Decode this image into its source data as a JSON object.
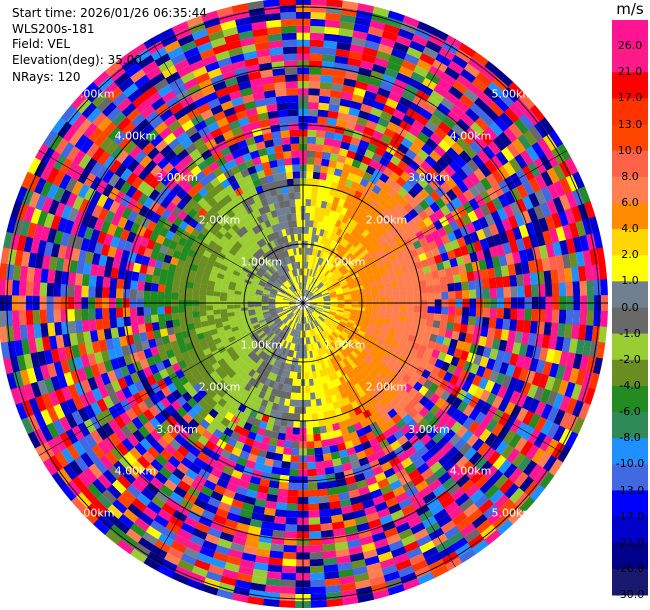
{
  "info": {
    "start_time": "Start time: 2026/01/26 06:35:44",
    "instrument": "WLS200s-181",
    "field": "Field: VEL",
    "elevation": "Elevation(deg): 35.00",
    "nrays": "NRays: 120"
  },
  "colorbar": {
    "unit": "m/s",
    "ticks": [
      "26.0",
      "21.0",
      "17.0",
      "13.0",
      "10.0",
      "8.0",
      "6.0",
      "4.0",
      "2.0",
      "1.0",
      "0.0",
      "-1.0",
      "-2.0",
      "-4.0",
      "-6.0",
      "-8.0",
      "-10.0",
      "-13.0",
      "-17.0",
      "-21.0",
      "-26.0",
      "-30.0"
    ],
    "colors": [
      "#ff1493",
      "#ff1a8c",
      "#ff0000",
      "#ff3300",
      "#ff4500",
      "#ff6347",
      "#ff7f50",
      "#ff8c00",
      "#ffd700",
      "#ffff00",
      "#708090",
      "#696969",
      "#9acd32",
      "#6b8e23",
      "#228b22",
      "#2e8b57",
      "#1e90ff",
      "#4169e1",
      "#0000ff",
      "#0000cd",
      "#00008b",
      "#191970"
    ]
  },
  "chart_data": {
    "type": "heatmap",
    "projection": "polar PPI",
    "field": "VEL",
    "units": "m/s",
    "elevation_deg": 35.0,
    "n_rays": 120,
    "range_ring_labels": [
      "1.00km",
      "2.00km",
      "3.00km",
      "4.00km",
      "5.00km"
    ],
    "value_range": [
      -30.0,
      26.0
    ],
    "pattern": {
      "near_range_west_sector": "-1.0 to -8.0",
      "near_range_east_sector": "0.0 to 8.0",
      "far_range": "noise spanning full scale"
    }
  }
}
